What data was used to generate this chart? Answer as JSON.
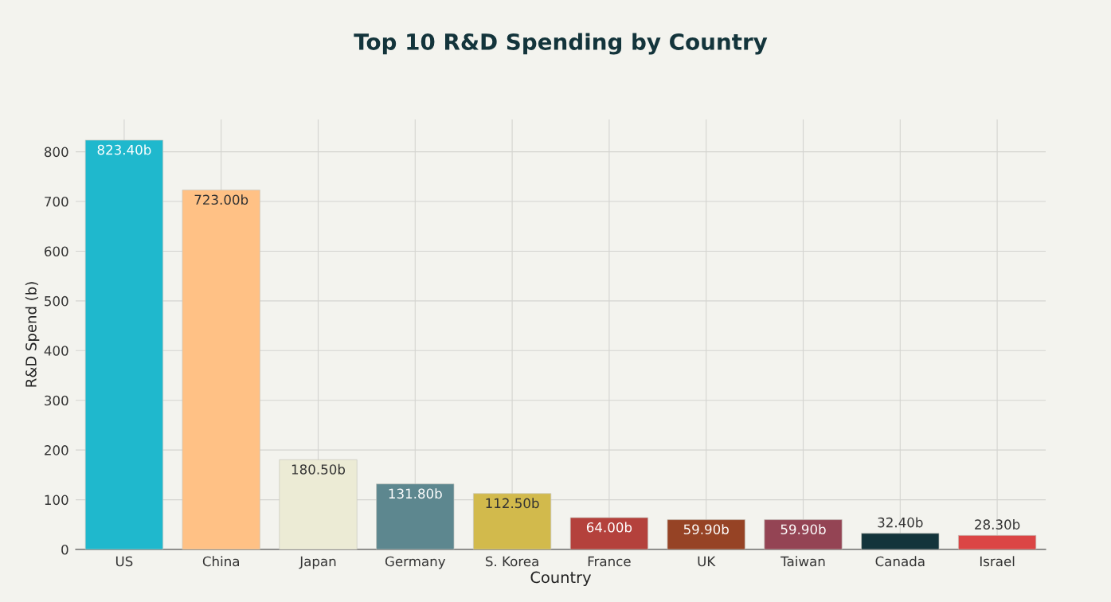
{
  "chart_data": {
    "type": "bar",
    "title": "Top 10 R&D Spending by Country",
    "xlabel": "Country",
    "ylabel": "R&D Spend (b)",
    "categories": [
      "US",
      "China",
      "Japan",
      "Germany",
      "S. Korea",
      "France",
      "UK",
      "Taiwan",
      "Canada",
      "Israel"
    ],
    "values": [
      823.4,
      723.0,
      180.5,
      131.8,
      112.5,
      64.0,
      59.9,
      59.9,
      32.4,
      28.3
    ],
    "colors": [
      "#1fb8cd",
      "#ffc185",
      "#eceBd5",
      "#5d878f",
      "#d2ba4c",
      "#b4413c",
      "#964325",
      "#944454",
      "#13343b",
      "#db4545"
    ],
    "value_labels": [
      "823.40b",
      "723.00b",
      "180.50b",
      "131.80b",
      "112.50b",
      "64.00b",
      "59.90b",
      "59.90b",
      "32.40b",
      "28.30b"
    ],
    "ylim": [
      0,
      865
    ],
    "yticks": [
      0,
      100,
      200,
      300,
      400,
      500,
      600,
      700,
      800
    ],
    "grid": true,
    "legend": false
  }
}
